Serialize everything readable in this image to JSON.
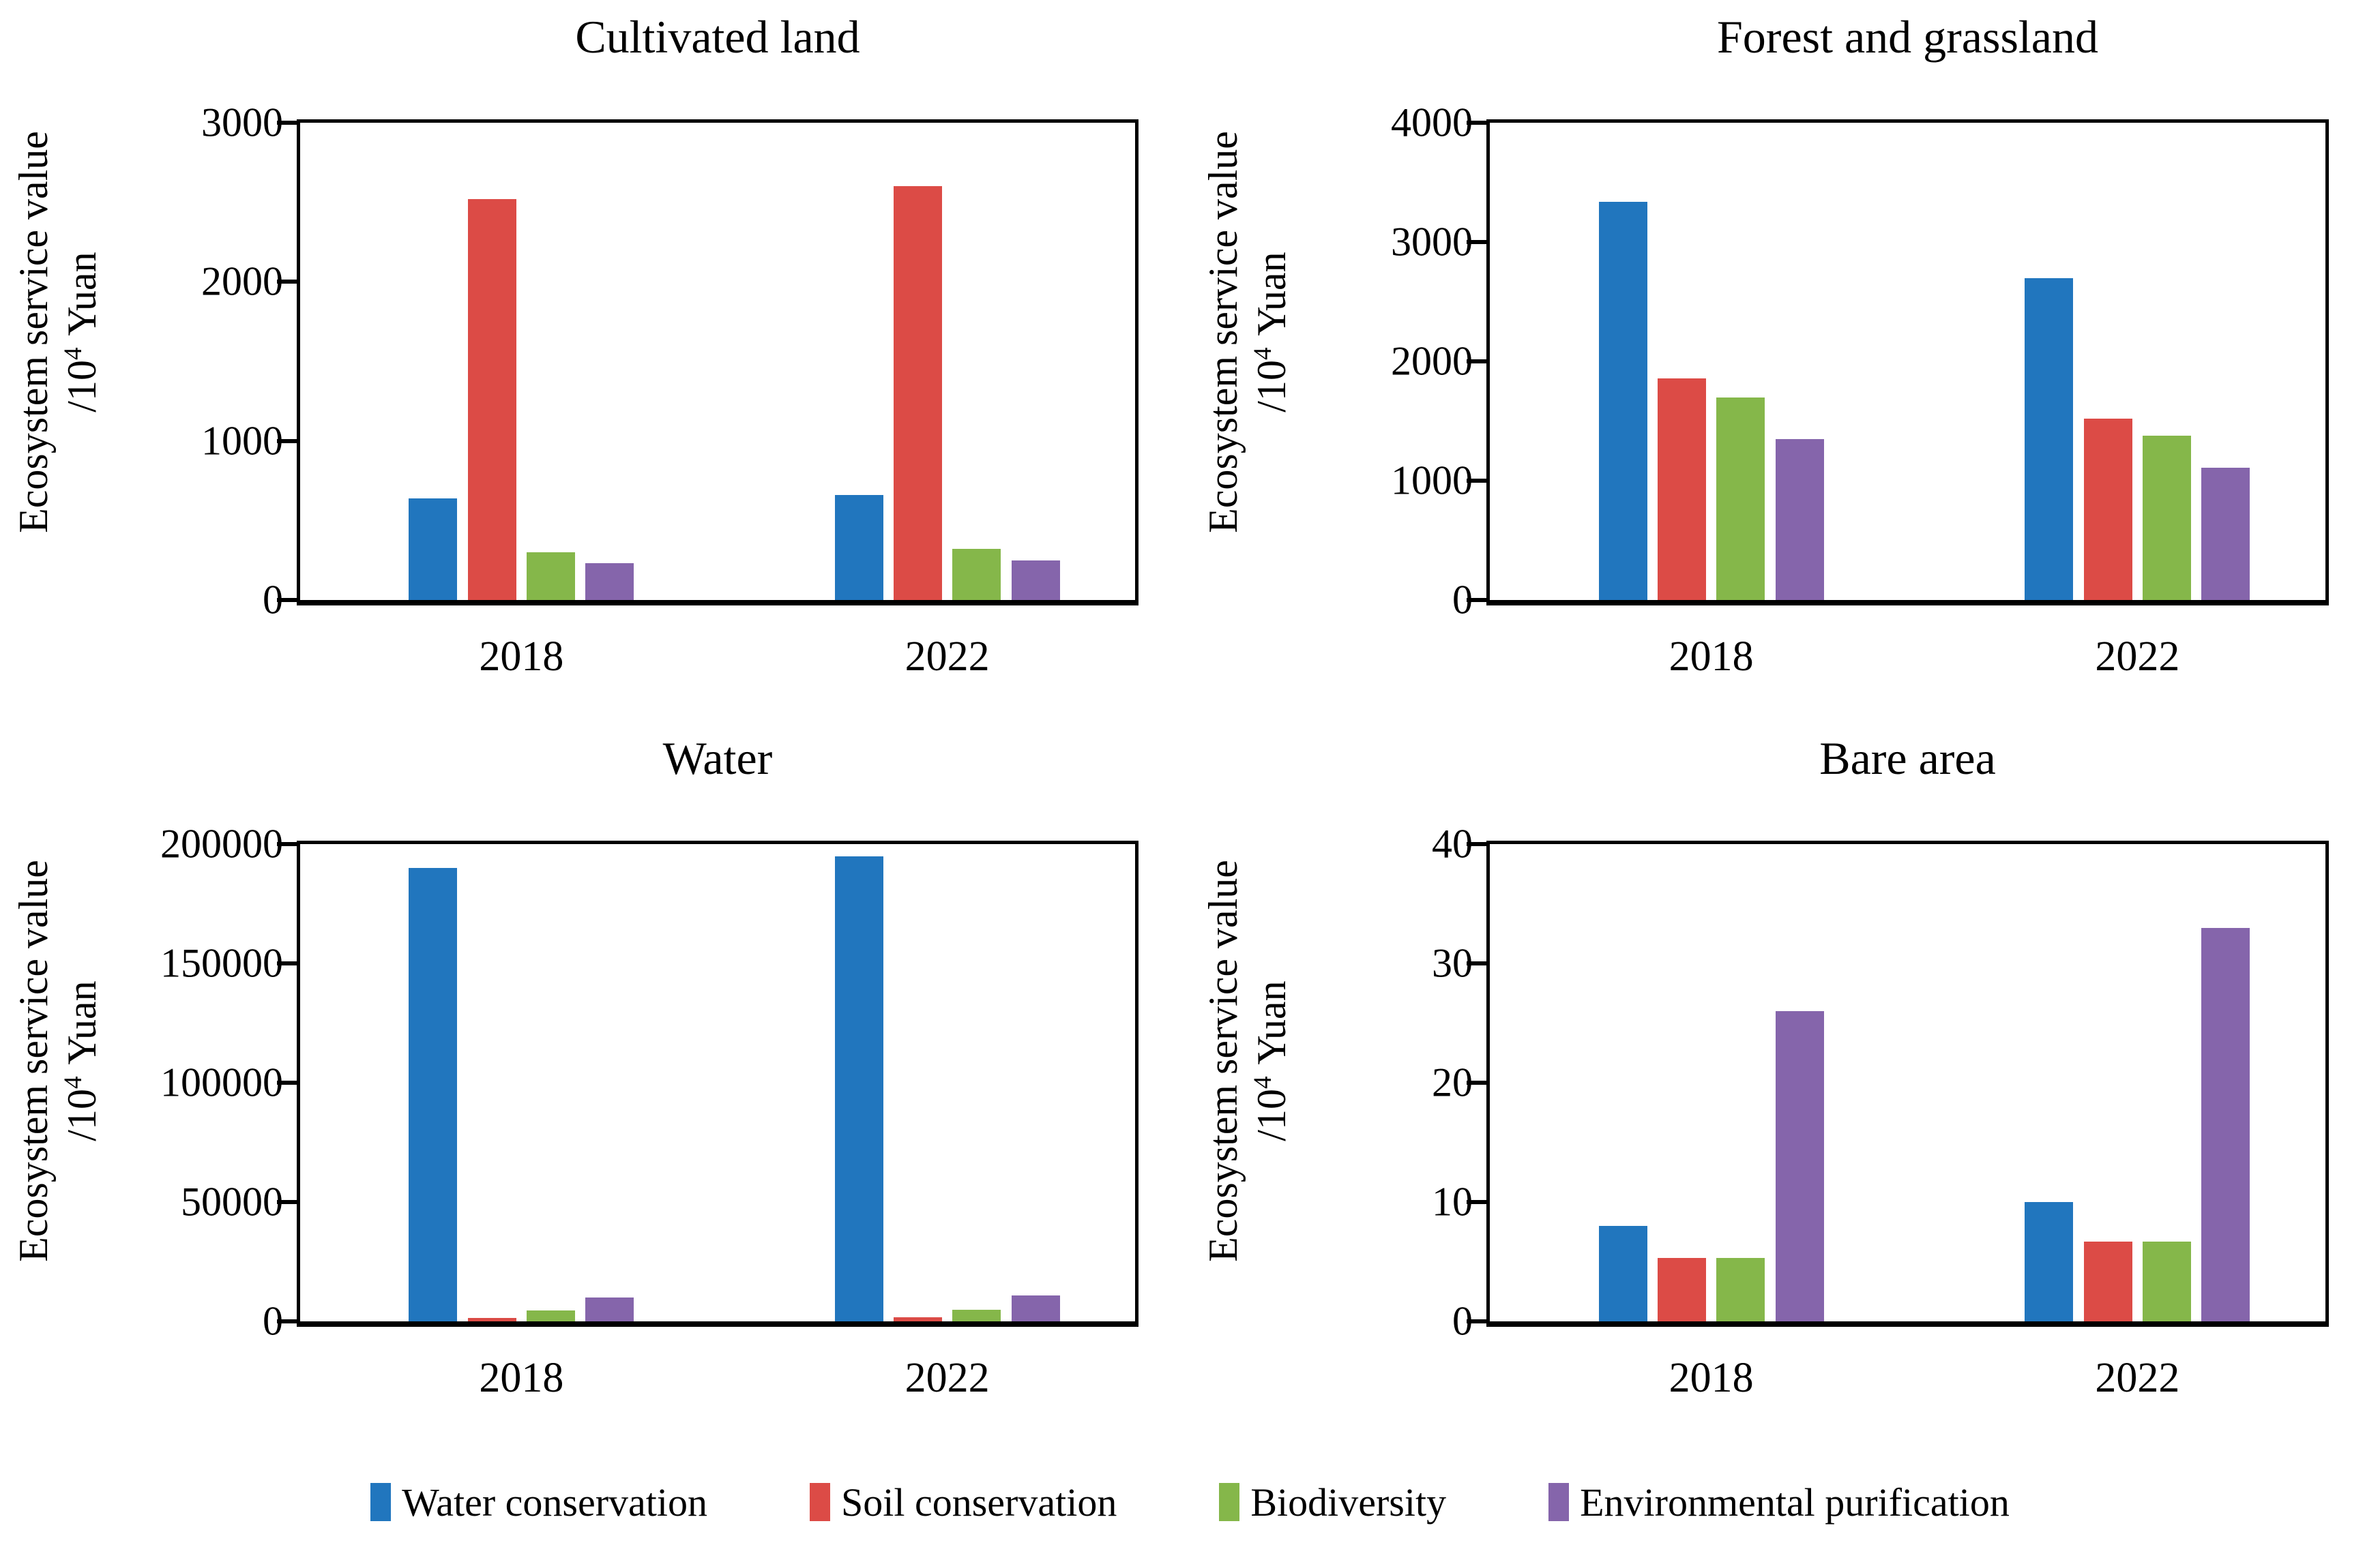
{
  "colors": {
    "series": [
      "#2176BE",
      "#DC4B46",
      "#85B74A",
      "#8565AB"
    ],
    "axis": "#000000",
    "background": "#ffffff"
  },
  "ylabel": {
    "line1": "Ecosystem service value",
    "line2_base": "/10",
    "line2_exp": "4",
    "line2_unit": "Yuan"
  },
  "legend": {
    "position": "bottom",
    "items": [
      {
        "label": "Water conservation",
        "color": "#2176BE"
      },
      {
        "label": "Soil conservation",
        "color": "#DC4B46"
      },
      {
        "label": "Biodiversity",
        "color": "#85B74A"
      },
      {
        "label": "Environmental purification",
        "color": "#8565AB"
      }
    ]
  },
  "chart_data": [
    {
      "type": "bar",
      "title": "Cultivated land",
      "ylabel": "Ecosystem service value /10^4 Yuan",
      "categories": [
        "2018",
        "2022"
      ],
      "ylim": [
        0,
        3000
      ],
      "yticks": [
        0,
        1000,
        2000,
        3000
      ],
      "grid": false,
      "series": [
        {
          "name": "Water conservation",
          "values": [
            640,
            660
          ]
        },
        {
          "name": "Soil conservation",
          "values": [
            2520,
            2600
          ]
        },
        {
          "name": "Biodiversity",
          "values": [
            300,
            320
          ]
        },
        {
          "name": "Environmental purification",
          "values": [
            230,
            250
          ]
        }
      ]
    },
    {
      "type": "bar",
      "title": "Forest and grassland",
      "ylabel": "Ecosystem service value /10^4 Yuan",
      "categories": [
        "2018",
        "2022"
      ],
      "ylim": [
        0,
        4000
      ],
      "yticks": [
        0,
        1000,
        2000,
        3000,
        4000
      ],
      "grid": false,
      "series": [
        {
          "name": "Water conservation",
          "values": [
            3340,
            2700
          ]
        },
        {
          "name": "Soil conservation",
          "values": [
            1860,
            1520
          ]
        },
        {
          "name": "Biodiversity",
          "values": [
            1700,
            1380
          ]
        },
        {
          "name": "Environmental purification",
          "values": [
            1350,
            1110
          ]
        }
      ]
    },
    {
      "type": "bar",
      "title": "Water",
      "ylabel": "Ecosystem service value /10^4 Yuan",
      "categories": [
        "2018",
        "2022"
      ],
      "ylim": [
        0,
        200000
      ],
      "yticks": [
        0,
        50000,
        100000,
        150000,
        200000
      ],
      "grid": false,
      "series": [
        {
          "name": "Water conservation",
          "values": [
            190000,
            195000
          ]
        },
        {
          "name": "Soil conservation",
          "values": [
            1500,
            1700
          ]
        },
        {
          "name": "Biodiversity",
          "values": [
            4700,
            5000
          ]
        },
        {
          "name": "Environmental purification",
          "values": [
            10000,
            11000
          ]
        }
      ]
    },
    {
      "type": "bar",
      "title": "Bare area",
      "ylabel": "Ecosystem service value /10^4 Yuan",
      "categories": [
        "2018",
        "2022"
      ],
      "ylim": [
        0,
        40
      ],
      "yticks": [
        0,
        10,
        20,
        30,
        40
      ],
      "grid": false,
      "series": [
        {
          "name": "Water conservation",
          "values": [
            8,
            10
          ]
        },
        {
          "name": "Soil conservation",
          "values": [
            5.3,
            6.7
          ]
        },
        {
          "name": "Biodiversity",
          "values": [
            5.3,
            6.7
          ]
        },
        {
          "name": "Environmental purification",
          "values": [
            26,
            33
          ]
        }
      ]
    }
  ]
}
